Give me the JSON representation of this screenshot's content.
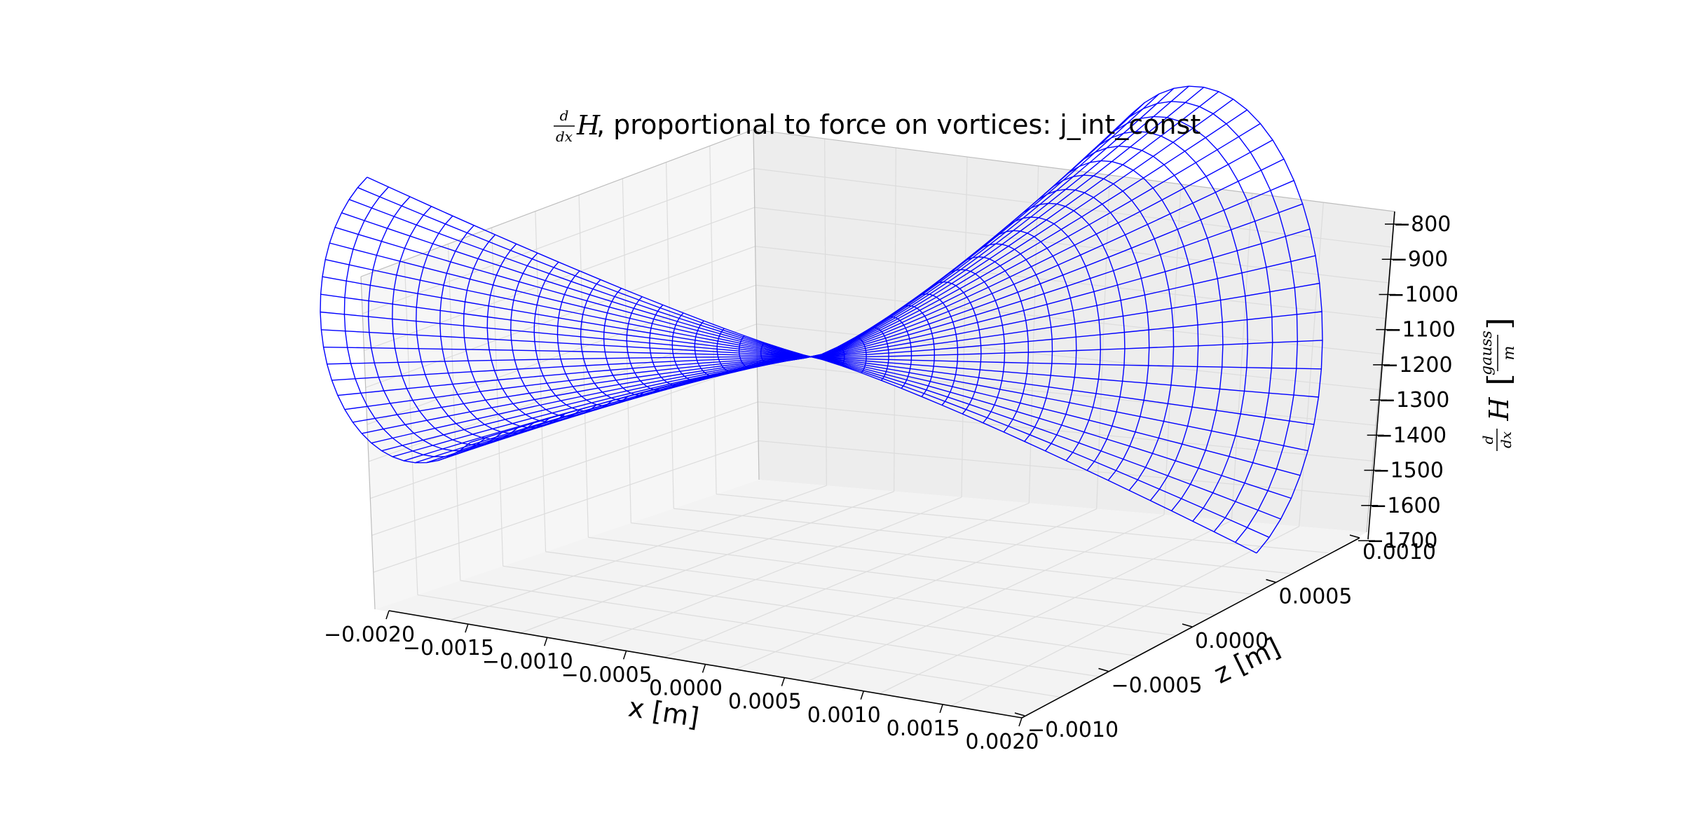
{
  "chart_data": {
    "type": "surface-wireframe-3d",
    "title": {
      "frac_num": "d",
      "frac_den": "dx",
      "symbol": "H",
      "rest": ", proportional to force on vortices: j_int_const"
    },
    "xlabel": "x [m]",
    "zlabel": "z [m]",
    "ylabel": {
      "frac_num": "d",
      "frac_den": "dx",
      "symbol": "H",
      "unit_num": "gauss",
      "unit_den": "m"
    },
    "x_ticks": [
      "−0.0020",
      "−0.0015",
      "−0.0010",
      "−0.0005",
      "0.0000",
      "0.0005",
      "0.0010",
      "0.0015",
      "0.0020"
    ],
    "z_ticks": [
      "−0.0010",
      "−0.0005",
      "0.0000",
      "0.0005",
      "0.0010"
    ],
    "value_ticks": [
      "−800",
      "−900",
      "−1000",
      "−1100",
      "−1200",
      "−1300",
      "−1400",
      "−1500",
      "−1600",
      "−1700"
    ],
    "x_range": [
      -0.002,
      0.002
    ],
    "z_range": [
      -0.001,
      0.001
    ],
    "value_range": [
      -1700,
      -800
    ],
    "grid": true,
    "wire_color": "#0000ff",
    "pane_color": "#f2f2f2",
    "series": [
      {
        "description_values": "wireframe of dH/dx over (x, z); values range approx. -1650 (trough at x=-0.002 edge) to -820 (peak near x=0.0015, z=0.0006)"
      }
    ]
  }
}
